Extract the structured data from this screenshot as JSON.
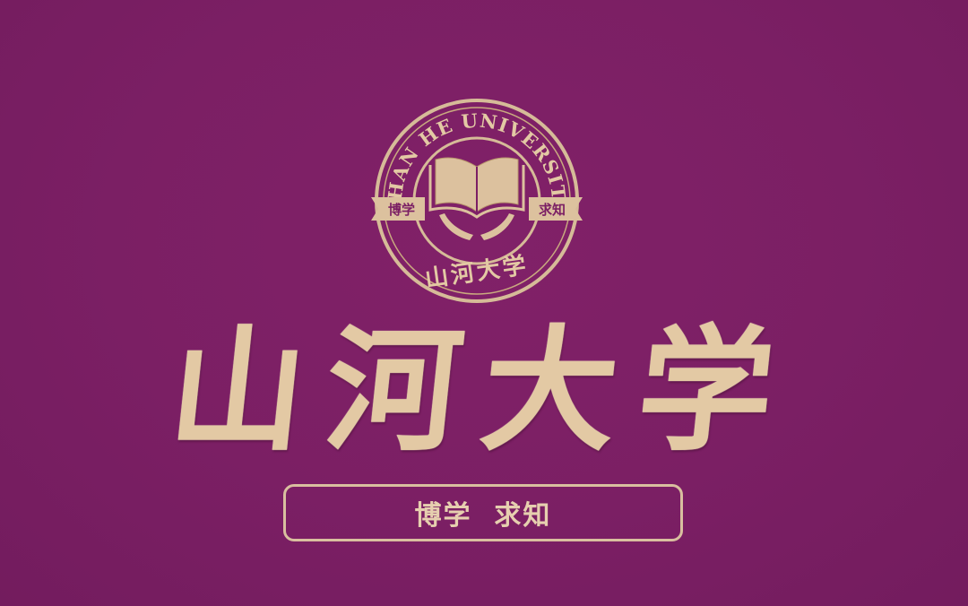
{
  "seal": {
    "ring_text": "SHAN HE UNIVERSITY",
    "ribbon_left": "博学",
    "ribbon_right": "求知",
    "bottom_text": "山河大学",
    "icons": [
      "open-book-icon",
      "cupped-hands-icon"
    ]
  },
  "title": "山河大学",
  "motto": "博学  求知",
  "colors": {
    "background": "#7b1f64",
    "gold": "#e3c9a4",
    "gold_dark": "#c9a97f"
  }
}
